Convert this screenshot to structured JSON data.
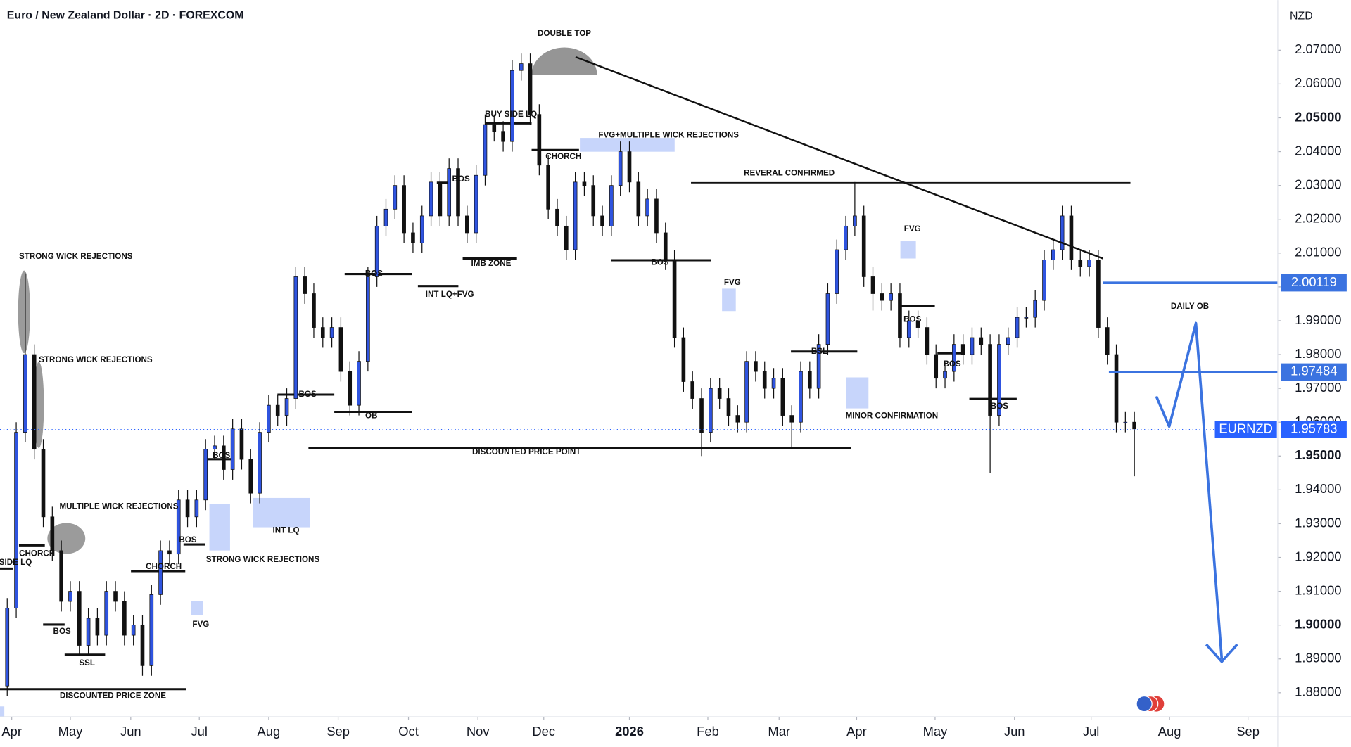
{
  "chart_data": {
    "type": "candlestick",
    "title": "Euro / New Zealand Dollar · 2D · FOREXCOM",
    "currency": "NZD",
    "symbol": "EURNZD",
    "up_color": "#2f54e0",
    "down_color": "#111111",
    "open": [
      1.882,
      1.905,
      1.957,
      1.98,
      1.952,
      1.932,
      1.922,
      1.907,
      1.91,
      1.894,
      1.902,
      1.897,
      1.91,
      1.907,
      1.897,
      1.9,
      1.888,
      1.909,
      1.922,
      1.921,
      1.937,
      1.932,
      1.937,
      1.952,
      1.953,
      1.946,
      1.958,
      1.949,
      1.939,
      1.957,
      1.965,
      1.962,
      1.967,
      2.003,
      1.998,
      1.988,
      1.985,
      1.988,
      1.975,
      1.965,
      1.978,
      2.003,
      2.018,
      2.023,
      2.03,
      2.016,
      2.013,
      2.021,
      2.031,
      2.021,
      2.035,
      2.021,
      2.016,
      2.033,
      2.048,
      2.046,
      2.043,
      2.064,
      2.066,
      2.051,
      2.036,
      2.023,
      2.018,
      2.011,
      2.031,
      2.03,
      2.021,
      2.018,
      2.03,
      2.04,
      2.031,
      2.021,
      2.026,
      2.016,
      2.008,
      1.985,
      1.972,
      1.967,
      1.957,
      1.97,
      1.967,
      1.962,
      1.96,
      1.978,
      1.975,
      1.97,
      1.973,
      1.962,
      1.96,
      1.975,
      1.97,
      1.983,
      1.998,
      2.011,
      2.018,
      2.021,
      2.003,
      1.998,
      1.996,
      1.998,
      1.985,
      1.99,
      1.988,
      1.98,
      1.973,
      1.975,
      1.983,
      1.98,
      1.985,
      1.983,
      1.962,
      1.983,
      1.985,
      1.991,
      1.991,
      1.996,
      2.008,
      2.011,
      2.021,
      2.008,
      2.006,
      2.008,
      1.988,
      1.98,
      1.96,
      1.96
    ],
    "high": [
      1.908,
      1.96,
      2.004,
      1.983,
      1.955,
      1.935,
      1.925,
      1.913,
      1.913,
      1.905,
      1.905,
      1.913,
      1.913,
      1.91,
      1.903,
      1.903,
      1.912,
      1.925,
      1.925,
      1.94,
      1.94,
      1.94,
      1.955,
      1.956,
      1.956,
      1.961,
      1.961,
      1.952,
      1.96,
      1.968,
      1.968,
      1.97,
      2.006,
      2.006,
      2.001,
      1.991,
      1.991,
      1.991,
      1.978,
      1.981,
      2.006,
      2.021,
      2.026,
      2.033,
      2.033,
      2.019,
      2.024,
      2.034,
      2.034,
      2.038,
      2.038,
      2.024,
      2.036,
      2.051,
      2.051,
      2.049,
      2.067,
      2.069,
      2.069,
      2.054,
      2.039,
      2.026,
      2.021,
      2.034,
      2.034,
      2.033,
      2.024,
      2.033,
      2.043,
      2.043,
      2.034,
      2.029,
      2.029,
      2.019,
      2.011,
      1.988,
      1.975,
      1.97,
      1.973,
      1.973,
      1.97,
      1.965,
      1.981,
      1.981,
      1.978,
      1.976,
      1.976,
      1.965,
      1.978,
      1.978,
      1.986,
      2.001,
      2.014,
      2.021,
      2.031,
      2.024,
      2.006,
      2.001,
      2.001,
      2.001,
      1.993,
      1.993,
      1.991,
      1.983,
      1.978,
      1.986,
      1.986,
      1.988,
      1.988,
      1.986,
      1.986,
      1.988,
      1.994,
      1.994,
      1.999,
      2.011,
      2.014,
      2.024,
      2.024,
      2.011,
      2.011,
      2.011,
      1.991,
      1.983,
      1.963,
      1.963
    ],
    "low": [
      1.879,
      1.902,
      1.954,
      1.949,
      1.929,
      1.919,
      1.904,
      1.904,
      1.891,
      1.891,
      1.894,
      1.894,
      1.904,
      1.894,
      1.894,
      1.885,
      1.885,
      1.906,
      1.918,
      1.918,
      1.929,
      1.929,
      1.934,
      1.949,
      1.943,
      1.943,
      1.946,
      1.936,
      1.936,
      1.954,
      1.959,
      1.959,
      1.964,
      1.995,
      1.985,
      1.982,
      1.982,
      1.972,
      1.962,
      1.962,
      1.975,
      2.0,
      2.015,
      2.02,
      2.013,
      2.01,
      2.01,
      2.018,
      2.018,
      2.018,
      2.018,
      2.013,
      2.013,
      2.03,
      2.043,
      2.04,
      2.04,
      2.061,
      2.048,
      2.033,
      2.02,
      2.015,
      2.008,
      2.008,
      2.027,
      2.018,
      2.015,
      2.015,
      2.027,
      2.028,
      2.018,
      2.018,
      2.013,
      2.005,
      1.982,
      1.969,
      1.964,
      1.95,
      1.954,
      1.964,
      1.959,
      1.957,
      1.957,
      1.972,
      1.967,
      1.967,
      1.959,
      1.952,
      1.957,
      1.967,
      1.967,
      1.98,
      1.995,
      2.008,
      2.015,
      2.0,
      1.993,
      1.993,
      1.993,
      1.982,
      1.982,
      1.985,
      1.977,
      1.97,
      1.97,
      1.972,
      1.977,
      1.977,
      1.98,
      1.945,
      1.959,
      1.98,
      1.982,
      1.988,
      1.988,
      1.993,
      2.005,
      2.008,
      2.005,
      2.003,
      2.003,
      1.985,
      1.977,
      1.957,
      1.957,
      1.944
    ],
    "close": [
      1.905,
      1.957,
      1.98,
      1.952,
      1.932,
      1.922,
      1.907,
      1.91,
      1.894,
      1.902,
      1.897,
      1.91,
      1.907,
      1.897,
      1.9,
      1.888,
      1.909,
      1.922,
      1.921,
      1.937,
      1.932,
      1.937,
      1.952,
      1.953,
      1.946,
      1.958,
      1.949,
      1.939,
      1.957,
      1.965,
      1.962,
      1.967,
      2.003,
      1.998,
      1.988,
      1.985,
      1.988,
      1.975,
      1.965,
      1.978,
      2.003,
      2.018,
      2.023,
      2.03,
      2.016,
      2.013,
      2.021,
      2.031,
      2.021,
      2.035,
      2.021,
      2.016,
      2.033,
      2.048,
      2.046,
      2.043,
      2.064,
      2.066,
      2.051,
      2.036,
      2.023,
      2.018,
      2.011,
      2.031,
      2.03,
      2.021,
      2.018,
      2.03,
      2.04,
      2.031,
      2.021,
      2.026,
      2.016,
      2.008,
      1.985,
      1.972,
      1.967,
      1.957,
      1.97,
      1.967,
      1.962,
      1.96,
      1.978,
      1.975,
      1.97,
      1.973,
      1.962,
      1.96,
      1.975,
      1.97,
      1.983,
      1.998,
      2.011,
      2.018,
      2.021,
      2.003,
      1.998,
      1.996,
      1.998,
      1.985,
      1.99,
      1.988,
      1.98,
      1.973,
      1.975,
      1.983,
      1.98,
      1.985,
      1.983,
      1.962,
      1.983,
      1.985,
      1.991,
      1.991,
      1.996,
      2.008,
      2.011,
      2.021,
      2.008,
      2.006,
      2.008,
      1.988,
      1.98,
      1.96,
      1.96,
      1.958
    ],
    "xlim": [
      -0.8,
      140.9
    ],
    "xticks": [
      {
        "value": 0.5,
        "label": "Apr"
      },
      {
        "value": 7.0,
        "label": "May"
      },
      {
        "value": 13.7,
        "label": "Jun"
      },
      {
        "value": 21.3,
        "label": "Jul"
      },
      {
        "value": 29.0,
        "label": "Aug"
      },
      {
        "value": 36.7,
        "label": "Sep"
      },
      {
        "value": 44.5,
        "label": "Oct"
      },
      {
        "value": 52.2,
        "label": "Nov"
      },
      {
        "value": 59.5,
        "label": "Dec"
      },
      {
        "value": 69.0,
        "label": "2026",
        "bold": true
      },
      {
        "value": 77.7,
        "label": "Feb"
      },
      {
        "value": 85.6,
        "label": "Mar"
      },
      {
        "value": 94.2,
        "label": "Apr"
      },
      {
        "value": 102.9,
        "label": "May"
      },
      {
        "value": 111.7,
        "label": "Jun"
      },
      {
        "value": 120.2,
        "label": "Jul"
      },
      {
        "value": 128.9,
        "label": "Aug"
      },
      {
        "value": 137.6,
        "label": "Sep"
      }
    ],
    "ylim": [
      1.8729,
      2.0848
    ],
    "yticks": [
      {
        "value": 2.07,
        "label": "2.07000"
      },
      {
        "value": 2.06,
        "label": "2.06000"
      },
      {
        "value": 2.05,
        "label": "2.05000",
        "bold": true
      },
      {
        "value": 2.04,
        "label": "2.04000"
      },
      {
        "value": 2.03,
        "label": "2.03000"
      },
      {
        "value": 2.02,
        "label": "2.02000"
      },
      {
        "value": 2.01,
        "label": "2.01000"
      },
      {
        "value": 2.0,
        "label": "2.00000"
      },
      {
        "value": 1.99,
        "label": "1.99000"
      },
      {
        "value": 1.98,
        "label": "1.98000"
      },
      {
        "value": 1.97,
        "label": "1.97000"
      },
      {
        "value": 1.96,
        "label": "1.96000"
      },
      {
        "value": 1.95,
        "label": "1.95000",
        "bold": true
      },
      {
        "value": 1.94,
        "label": "1.94000"
      },
      {
        "value": 1.93,
        "label": "1.93000"
      },
      {
        "value": 1.92,
        "label": "1.92000"
      },
      {
        "value": 1.91,
        "label": "1.91000"
      },
      {
        "value": 1.9,
        "label": "1.90000",
        "bold": true
      },
      {
        "value": 1.89,
        "label": "1.89000"
      },
      {
        "value": 1.88,
        "label": "1.88000"
      }
    ],
    "price_lines": [
      {
        "value": 2.00119,
        "color": "#3b73e0"
      },
      {
        "value": 1.97484,
        "color": "#3b73e0"
      },
      {
        "value": 1.95783,
        "color": "#2962ff",
        "last": true
      }
    ],
    "annotations": [
      "DOUBLE TOP",
      "BUY SIDE LQ",
      "FVG+MULTIPLE WICK REJECTIONS",
      "CHORCH",
      "BOS",
      "REVERAL CONFIRMED",
      "IMB ZONE",
      "BOS",
      "FVG",
      "FVG",
      "BOS",
      "INT LQ+FVG",
      "STRONG WICK REJECTIONS",
      "STRONG WICK REJECTIONS",
      "DAILY OB",
      "BOS",
      "BSL",
      "BOS",
      "BOS",
      "OB",
      "BOS",
      "MINOR CONFIRMATION",
      "DISCOUNTED PRICE POINT",
      "BOS",
      "MULTIPLE WICK REJECTIONS",
      "INT LQ",
      "BOS",
      "CHORCH",
      "SIDE LQ",
      "CHORCH",
      "STRONG WICK REJECTIONS",
      "FVG",
      "BOS",
      "SSL",
      "DISCOUNTED PRICE ZONE"
    ]
  }
}
